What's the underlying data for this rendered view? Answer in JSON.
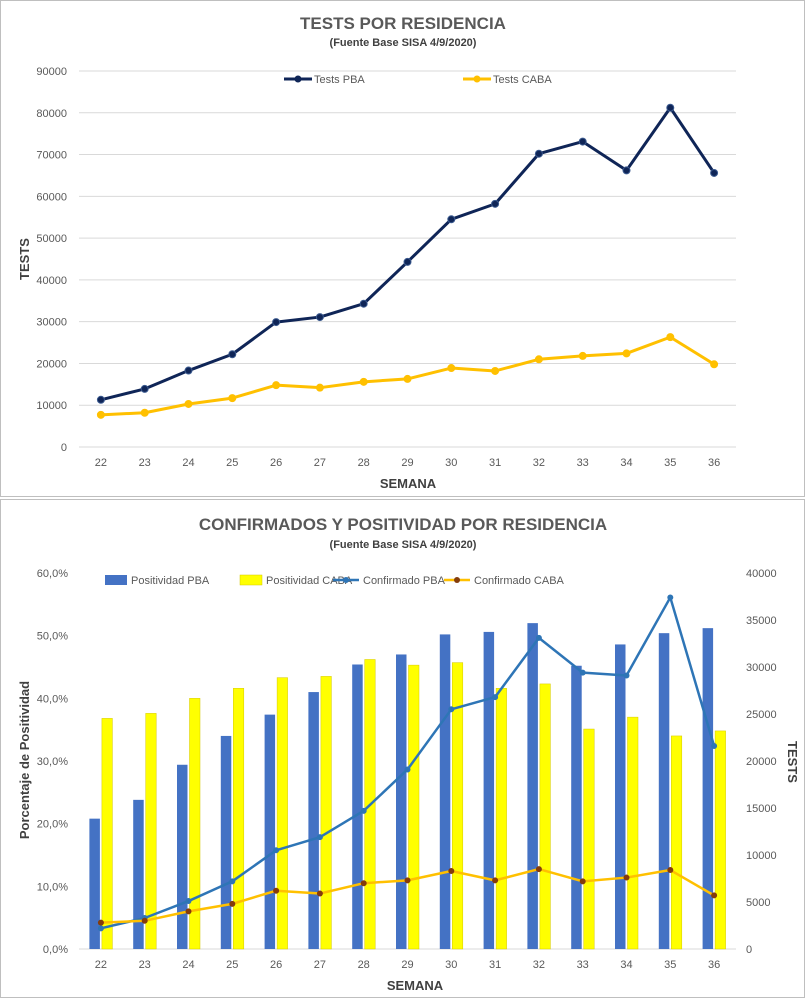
{
  "chart_data": [
    {
      "type": "line",
      "title": "TESTS POR RESIDENCIA",
      "subtitle": "(Fuente Base SISA 4/9/2020)",
      "xlabel": "SEMANA",
      "ylabel": "TESTS",
      "ylim": [
        0,
        90000
      ],
      "yticks": [
        "0",
        "10000",
        "20000",
        "30000",
        "40000",
        "50000",
        "60000",
        "70000",
        "80000",
        "90000"
      ],
      "categories": [
        "22",
        "23",
        "24",
        "25",
        "26",
        "27",
        "28",
        "29",
        "30",
        "31",
        "32",
        "33",
        "34",
        "35",
        "36"
      ],
      "grid": true,
      "legend_position": "top",
      "series": [
        {
          "name": "Tests PBA",
          "color": "#0f2557",
          "values": [
            11300,
            13900,
            18300,
            22200,
            29900,
            31100,
            34300,
            44300,
            54500,
            58200,
            70200,
            73100,
            66200,
            81200,
            65600
          ]
        },
        {
          "name": "Tests CABA",
          "color": "#ffc000",
          "values": [
            7700,
            8200,
            10300,
            11700,
            14800,
            14200,
            15600,
            16300,
            18900,
            18200,
            21000,
            21800,
            22400,
            26300,
            19800
          ]
        }
      ]
    },
    {
      "type": "bar",
      "title": "CONFIRMADOS Y POSITIVIDAD POR RESIDENCIA",
      "subtitle": "(Fuente Base SISA 4/9/2020)",
      "xlabel": "SEMANA",
      "ylabel": "Porcentaje de Positividad",
      "y2label": "TESTS",
      "ylim": [
        0,
        60
      ],
      "y2lim": [
        0,
        40000
      ],
      "yticks": [
        "0,0%",
        "10,0%",
        "20,0%",
        "30,0%",
        "40,0%",
        "50,0%",
        "60,0%"
      ],
      "y2ticks": [
        "0",
        "5000",
        "10000",
        "15000",
        "20000",
        "25000",
        "30000",
        "35000",
        "40000"
      ],
      "categories": [
        "22",
        "23",
        "24",
        "25",
        "26",
        "27",
        "28",
        "29",
        "30",
        "31",
        "32",
        "33",
        "34",
        "35",
        "36"
      ],
      "grid": false,
      "legend_position": "top",
      "bar_series": [
        {
          "name": "Positividad PBA",
          "color": "#4472c4",
          "values": [
            20.8,
            23.8,
            29.4,
            34.0,
            37.4,
            41.0,
            45.4,
            47.0,
            50.2,
            50.6,
            52.0,
            45.2,
            48.6,
            50.4,
            51.2
          ]
        },
        {
          "name": "Positividad CABA",
          "color": "#ffff00",
          "values": [
            36.8,
            37.6,
            40.0,
            41.6,
            43.3,
            43.5,
            46.2,
            45.3,
            45.7,
            41.6,
            42.3,
            35.1,
            37.0,
            34.0,
            34.8
          ]
        }
      ],
      "line_series": [
        {
          "name": "Confirmado PBA",
          "color": "#2e75b6",
          "marker": "#2e75b6",
          "values": [
            2200,
            3300,
            5100,
            7200,
            10500,
            11900,
            14700,
            19100,
            25500,
            26800,
            33100,
            29400,
            29100,
            37400,
            21600
          ]
        },
        {
          "name": "Confirmado CABA",
          "color": "#ffc000",
          "marker": "#843c0c",
          "values": [
            2800,
            3000,
            4000,
            4800,
            6200,
            5900,
            7000,
            7300,
            8300,
            7300,
            8500,
            7200,
            7600,
            8400,
            5700
          ]
        }
      ]
    }
  ]
}
